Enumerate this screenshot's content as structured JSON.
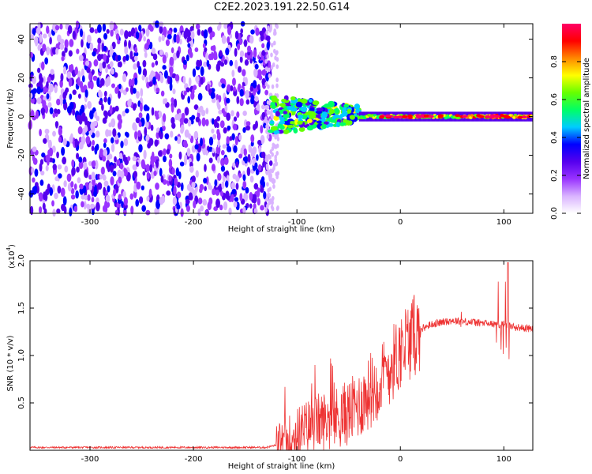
{
  "title": "C2E2.2023.191.22.50.G14",
  "chart_data": [
    {
      "type": "heatmap",
      "xlabel": "Height of straight line (km)",
      "ylabel": "Frequency (Hz)",
      "xlim": [
        -358,
        128
      ],
      "ylim": [
        -50,
        48
      ],
      "xticks": [
        -300,
        -200,
        -100,
        0,
        100
      ],
      "yticks": [
        -40,
        -20,
        0,
        20,
        40
      ],
      "colorbar": {
        "label": "Normalized spectral amplitude",
        "range": [
          0.0,
          1.0
        ],
        "ticks": [
          0.0,
          0.2,
          0.4,
          0.6,
          0.8
        ],
        "colors": [
          "#ffffff",
          "#d9b3ff",
          "#9933ff",
          "#5500ee",
          "#0000ff",
          "#00ccff",
          "#00ff66",
          "#66ff00",
          "#ffff00",
          "#ff8800",
          "#ff0000",
          "#ff0066"
        ]
      },
      "regions": [
        {
          "x_range": [
            -358,
            -125
          ],
          "y_range": [
            -50,
            48
          ],
          "amplitude": 0.15
        },
        {
          "x_range": [
            -125,
            -40
          ],
          "y_range": [
            -12,
            10
          ],
          "amplitude": 0.45
        },
        {
          "x_range": [
            -40,
            128
          ],
          "y_range": [
            -3,
            3
          ],
          "amplitude": 0.8
        }
      ]
    },
    {
      "type": "line",
      "xlabel": "Height of straight line (km)",
      "ylabel": "SNR (10 * v/v)",
      "y_multiplier": "(x10",
      "y_multiplier_exp": "4",
      "y_multiplier_close": ")",
      "xlim": [
        -358,
        128
      ],
      "ylim": [
        0,
        2.0
      ],
      "xticks": [
        -300,
        -200,
        -100,
        0,
        100
      ],
      "yticks": [
        0.5,
        1.0,
        1.5,
        2.0
      ],
      "ytick_labels": [
        "0.5",
        "1.0",
        "1.5",
        "2.0"
      ],
      "series": [
        {
          "color": "#ee3333",
          "x": [
            -358,
            -300,
            -200,
            -130,
            -110,
            -100,
            -90,
            -80,
            -70,
            -60,
            -50,
            -40,
            -30,
            -20,
            -10,
            0,
            10,
            20,
            30,
            40,
            50,
            60,
            70,
            80,
            90,
            100,
            110,
            128
          ],
          "y": [
            0.03,
            0.03,
            0.03,
            0.03,
            0.08,
            0.18,
            0.25,
            0.3,
            0.32,
            0.35,
            0.4,
            0.48,
            0.6,
            0.72,
            0.88,
            1.05,
            1.18,
            1.28,
            1.33,
            1.35,
            1.37,
            1.36,
            1.35,
            1.34,
            1.33,
            1.33,
            1.3,
            1.28
          ]
        }
      ]
    }
  ]
}
